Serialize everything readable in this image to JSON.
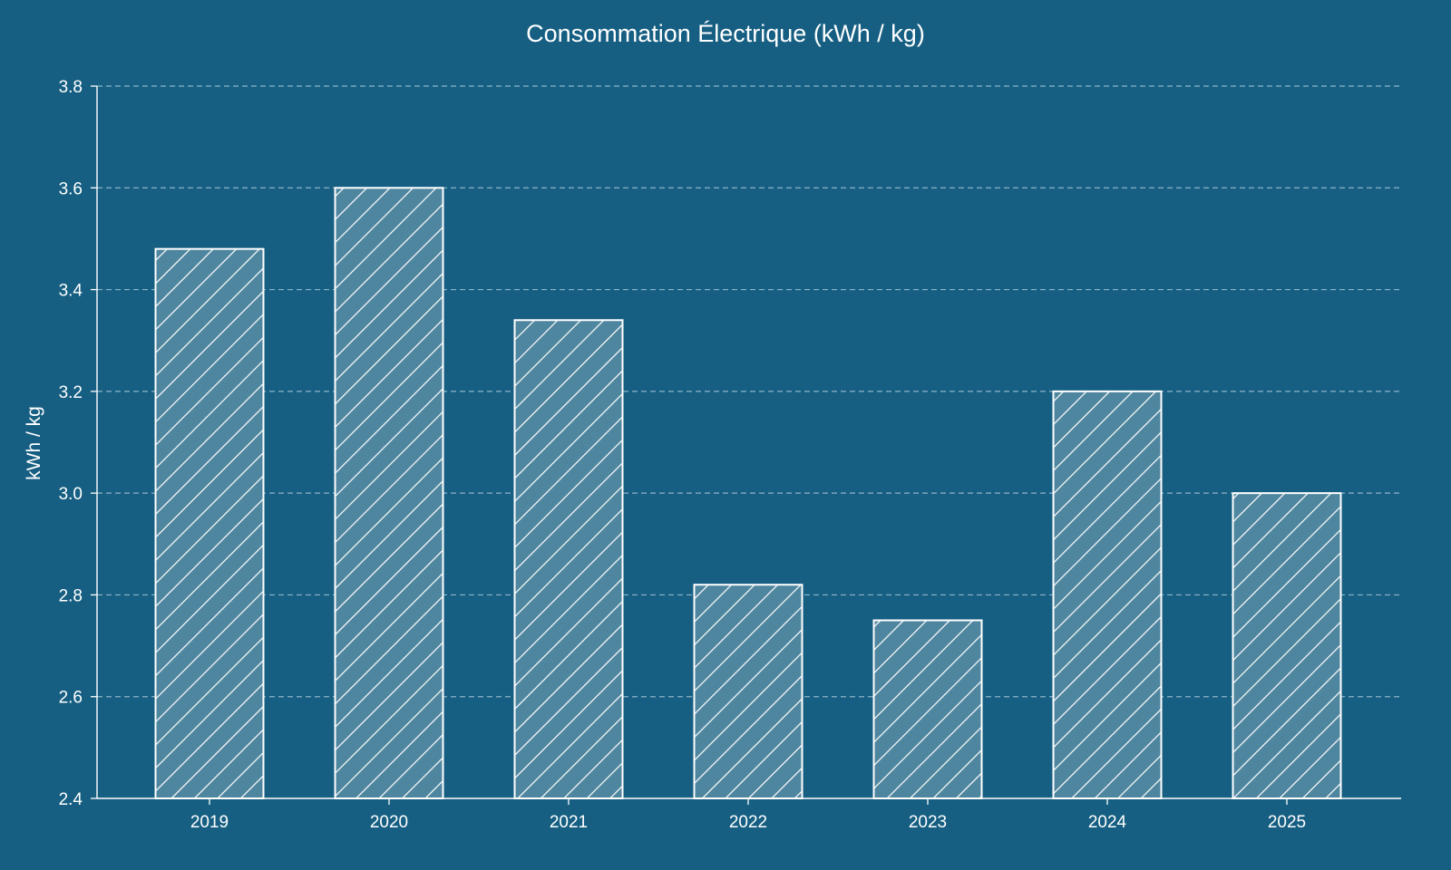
{
  "chart_data": {
    "type": "bar",
    "title": "Consommation Électrique (kWh / kg)",
    "xlabel": "",
    "ylabel": "kWh / kg",
    "categories": [
      "2019",
      "2020",
      "2021",
      "2022",
      "2023",
      "2024",
      "2025"
    ],
    "values": [
      3.48,
      3.6,
      3.34,
      2.82,
      2.75,
      3.2,
      3.0
    ],
    "ylim": [
      2.4,
      3.8
    ],
    "yticks": [
      "2.4",
      "2.6",
      "2.8",
      "3.0",
      "3.2",
      "3.4",
      "3.6",
      "3.8"
    ],
    "grid": {
      "y": true,
      "x": false,
      "style": "dashed"
    },
    "legend": null,
    "bar_style": {
      "hatch": "diagonal ///",
      "edge": "white"
    }
  },
  "colors": {
    "background": "#165f82",
    "bar_fill": "#4f869f",
    "bar_edge": "#ffffff",
    "grid": "#8db3c6",
    "text": "#ffffff"
  }
}
